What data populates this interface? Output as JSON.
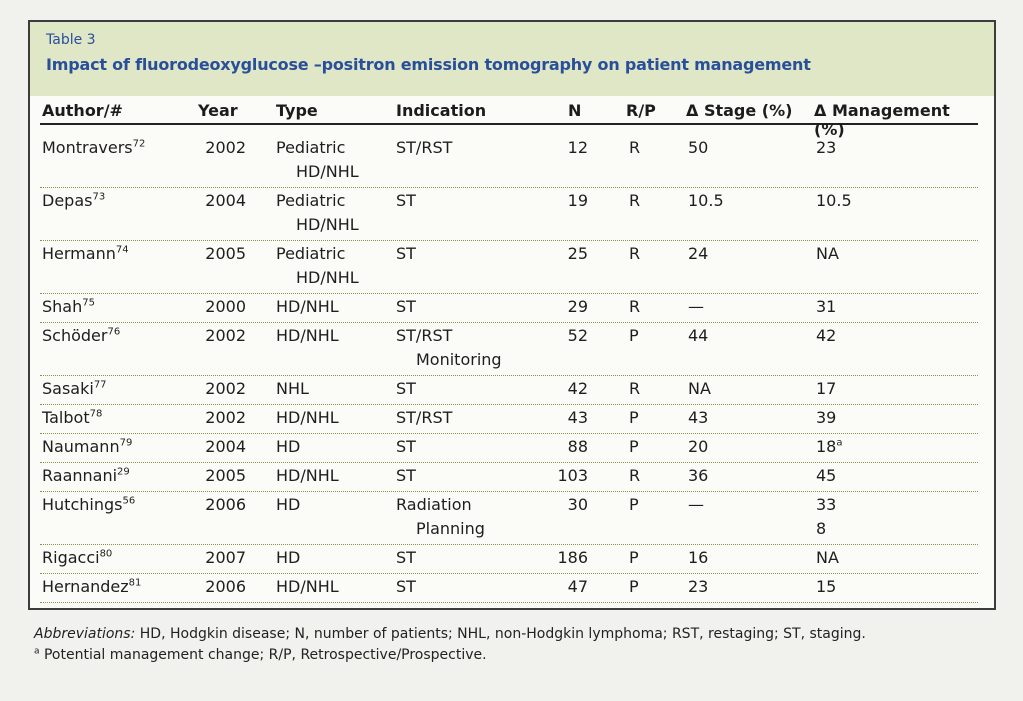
{
  "table": {
    "number": "Table 3",
    "title": "Impact of fluorodeoxyglucose –positron emission tomography on patient management",
    "headers": {
      "author": "Author/#",
      "year": "Year",
      "type": "Type",
      "indication": "Indication",
      "n": "N",
      "rp": "R/P",
      "stage": "Δ Stage (%)",
      "management": "Δ Management (%)"
    },
    "rows": [
      {
        "author": "Montravers",
        "ref": "72",
        "year": "2002",
        "type1": "Pediatric",
        "type2": "HD/NHL",
        "ind1": "ST/RST",
        "ind2": "",
        "n": "12",
        "rp": "R",
        "stage": "50",
        "mgmt1": "23",
        "mgmt_sup": "",
        "mgmt2": ""
      },
      {
        "author": "Depas",
        "ref": "73",
        "year": "2004",
        "type1": "Pediatric",
        "type2": "HD/NHL",
        "ind1": "ST",
        "ind2": "",
        "n": "19",
        "rp": "R",
        "stage": "10.5",
        "mgmt1": "10.5",
        "mgmt_sup": "",
        "mgmt2": ""
      },
      {
        "author": "Hermann",
        "ref": "74",
        "year": "2005",
        "type1": "Pediatric",
        "type2": "HD/NHL",
        "ind1": "ST",
        "ind2": "",
        "n": "25",
        "rp": "R",
        "stage": "24",
        "mgmt1": "NA",
        "mgmt_sup": "",
        "mgmt2": ""
      },
      {
        "author": "Shah",
        "ref": "75",
        "year": "2000",
        "type1": "HD/NHL",
        "type2": "",
        "ind1": "ST",
        "ind2": "",
        "n": "29",
        "rp": "R",
        "stage": "—",
        "mgmt1": "31",
        "mgmt_sup": "",
        "mgmt2": ""
      },
      {
        "author": "Schöder",
        "ref": "76",
        "year": "2002",
        "type1": "HD/NHL",
        "type2": "",
        "ind1": "ST/RST",
        "ind2": "Monitoring",
        "n": "52",
        "rp": "P",
        "stage": "44",
        "mgmt1": "42",
        "mgmt_sup": "",
        "mgmt2": ""
      },
      {
        "author": "Sasaki",
        "ref": "77",
        "year": "2002",
        "type1": "NHL",
        "type2": "",
        "ind1": "ST",
        "ind2": "",
        "n": "42",
        "rp": "R",
        "stage": "NA",
        "mgmt1": "17",
        "mgmt_sup": "",
        "mgmt2": ""
      },
      {
        "author": "Talbot",
        "ref": "78",
        "year": "2002",
        "type1": "HD/NHL",
        "type2": "",
        "ind1": "ST/RST",
        "ind2": "",
        "n": "43",
        "rp": "P",
        "stage": "43",
        "mgmt1": "39",
        "mgmt_sup": "",
        "mgmt2": ""
      },
      {
        "author": "Naumann",
        "ref": "79",
        "year": "2004",
        "type1": "HD",
        "type2": "",
        "ind1": "ST",
        "ind2": "",
        "n": "88",
        "rp": "P",
        "stage": "20",
        "mgmt1": "18",
        "mgmt_sup": "a",
        "mgmt2": ""
      },
      {
        "author": "Raannani",
        "ref": "29",
        "year": "2005",
        "type1": "HD/NHL",
        "type2": "",
        "ind1": "ST",
        "ind2": "",
        "n": "103",
        "rp": "R",
        "stage": "36",
        "mgmt1": "45",
        "mgmt_sup": "",
        "mgmt2": ""
      },
      {
        "author": "Hutchings",
        "ref": "56",
        "year": "2006",
        "type1": "HD",
        "type2": "",
        "ind1": "Radiation",
        "ind2": "Planning",
        "n": "30",
        "rp": "P",
        "stage": "—",
        "mgmt1": "33",
        "mgmt_sup": "",
        "mgmt2": "8"
      },
      {
        "author": "Rigacci",
        "ref": "80",
        "year": "2007",
        "type1": "HD",
        "type2": "",
        "ind1": "ST",
        "ind2": "",
        "n": "186",
        "rp": "P",
        "stage": "16",
        "mgmt1": "NA",
        "mgmt_sup": "",
        "mgmt2": ""
      },
      {
        "author": "Hernandez",
        "ref": "81",
        "year": "2006",
        "type1": "HD/NHL",
        "type2": "",
        "ind1": "ST",
        "ind2": "",
        "n": "47",
        "rp": "P",
        "stage": "23",
        "mgmt1": "15",
        "mgmt_sup": "",
        "mgmt2": ""
      }
    ]
  },
  "footer": {
    "abbrev_label": "Abbreviations:",
    "abbrev_text": " HD, Hodgkin disease; N, number of patients; NHL, non-Hodgkin lymphoma; RST, restaging; ST, staging.",
    "note_mark": "a",
    "note_text": " Potential management change; R/P, Retrospective/Prospective."
  }
}
